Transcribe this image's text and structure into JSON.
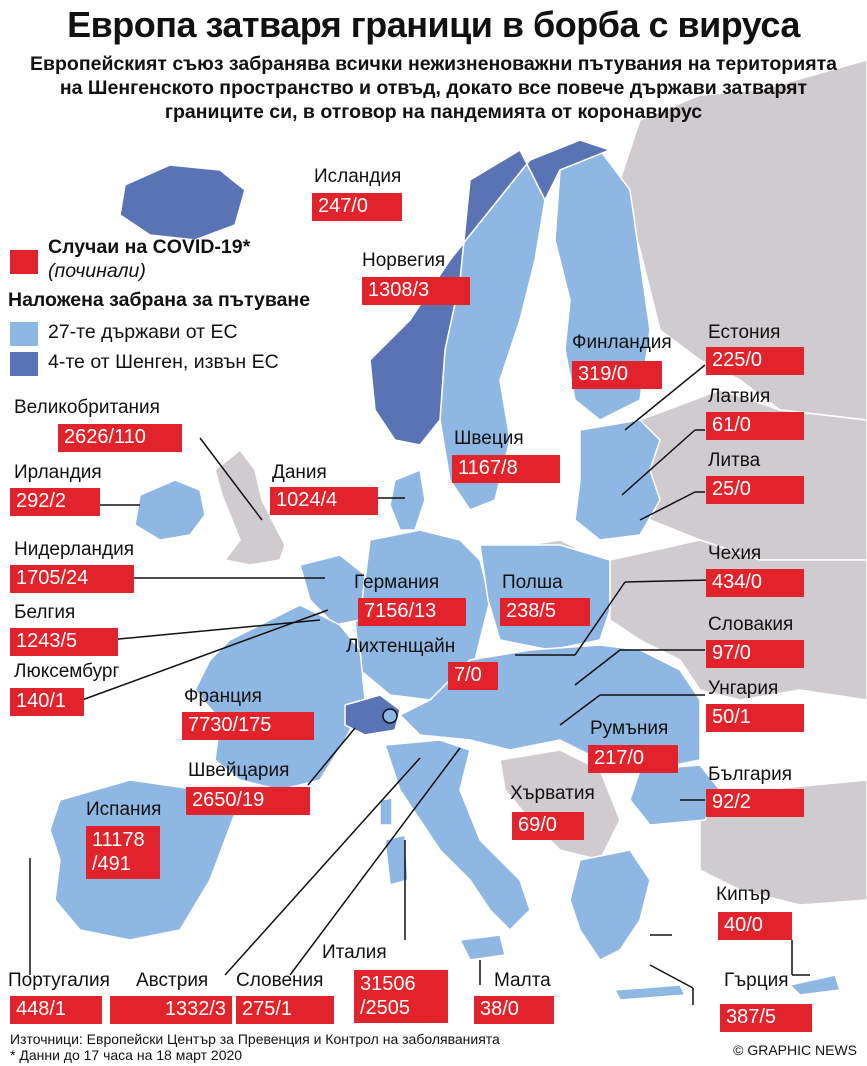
{
  "title": "Европа затваря граници в борба с вируса",
  "subtitle": "Европейският съюз забранява всички нежизненоважни пътувания на територията на Шенгенското пространство и отвъд, докато все повече държави затварят границите си, в отговор на пандемията от коронавирус",
  "legend": {
    "cases": "Случаи на COVID-19*",
    "deaths": "(починали)",
    "ban_title": "Наложена забрана за пътуване",
    "eu": "27-те държави от ЕС",
    "schengen": "4-те от Шенген, извън ЕС"
  },
  "colors": {
    "eu": "#8fb7e3",
    "schengen": "#5a73b5",
    "other": "#cfcbcf",
    "sea": "#ffffff",
    "badge": "#e3232b"
  },
  "countries": [
    {
      "id": "iceland",
      "name": "Исландия",
      "value": "247/0",
      "group": "schengen"
    },
    {
      "id": "norway",
      "name": "Норвегия",
      "value": "1308/3",
      "group": "schengen"
    },
    {
      "id": "finland",
      "name": "Финландия",
      "value": "319/0",
      "group": "eu"
    },
    {
      "id": "estonia",
      "name": "Естония",
      "value": "225/0",
      "group": "eu"
    },
    {
      "id": "latvia",
      "name": "Латвия",
      "value": "61/0",
      "group": "eu"
    },
    {
      "id": "uk",
      "name": "Великобритания",
      "value": "2626/110",
      "group": "other"
    },
    {
      "id": "sweden",
      "name": "Швеция",
      "value": "1167/8",
      "group": "eu"
    },
    {
      "id": "lithuania",
      "name": "Литва",
      "value": "25/0",
      "group": "eu"
    },
    {
      "id": "ireland",
      "name": "Ирландия",
      "value": "292/2",
      "group": "eu"
    },
    {
      "id": "denmark",
      "name": "Дания",
      "value": "1024/4",
      "group": "eu"
    },
    {
      "id": "netherlands",
      "name": "Нидерландия",
      "value": "1705/24",
      "group": "eu"
    },
    {
      "id": "czechia",
      "name": "Чехия",
      "value": "434/0",
      "group": "eu"
    },
    {
      "id": "germany",
      "name": "Германия",
      "value": "7156/13",
      "group": "eu"
    },
    {
      "id": "poland",
      "name": "Полша",
      "value": "238/5",
      "group": "eu"
    },
    {
      "id": "belgium",
      "name": "Белгия",
      "value": "1243/5",
      "group": "eu"
    },
    {
      "id": "slovakia",
      "name": "Словакия",
      "value": "97/0",
      "group": "eu"
    },
    {
      "id": "liechtenstein",
      "name": "Лихтенщайн",
      "value": "7/0",
      "group": "schengen"
    },
    {
      "id": "luxembourg",
      "name": "Люксембург",
      "value": "140/1",
      "group": "eu"
    },
    {
      "id": "hungary",
      "name": "Унгария",
      "value": "50/1",
      "group": "eu"
    },
    {
      "id": "france",
      "name": "Франция",
      "value": "7730/175",
      "group": "eu"
    },
    {
      "id": "romania",
      "name": "Румъния",
      "value": "217/0",
      "group": "eu"
    },
    {
      "id": "switzerland",
      "name": "Швейцария",
      "value": "2650/19",
      "group": "schengen"
    },
    {
      "id": "bulgaria",
      "name": "България",
      "value": "92/2",
      "group": "eu"
    },
    {
      "id": "croatia",
      "name": "Хърватия",
      "value": "69/0",
      "group": "eu"
    },
    {
      "id": "spain",
      "name": "Испания",
      "value": "11178\n/491",
      "group": "eu"
    },
    {
      "id": "cyprus",
      "name": "Кипър",
      "value": "40/0",
      "group": "eu"
    },
    {
      "id": "italy",
      "name": "Италия",
      "value": "31506\n/2505",
      "group": "eu"
    },
    {
      "id": "portugal",
      "name": "Португалия",
      "value": "448/1",
      "group": "eu"
    },
    {
      "id": "austria",
      "name": "Австрия",
      "value": "1332/3",
      "group": "eu"
    },
    {
      "id": "slovenia",
      "name": "Словения",
      "value": "275/1",
      "group": "eu"
    },
    {
      "id": "malta",
      "name": "Малта",
      "value": "38/0",
      "group": "eu"
    },
    {
      "id": "greece",
      "name": "Гърция",
      "value": "387/5",
      "group": "eu"
    }
  ],
  "sources": "Източници: Европейски Център за Превенция и Контрол на заболяванията",
  "note": "* Данни до 17 часа на 18 март 2020",
  "credit": "© GRAPHIC NEWS"
}
